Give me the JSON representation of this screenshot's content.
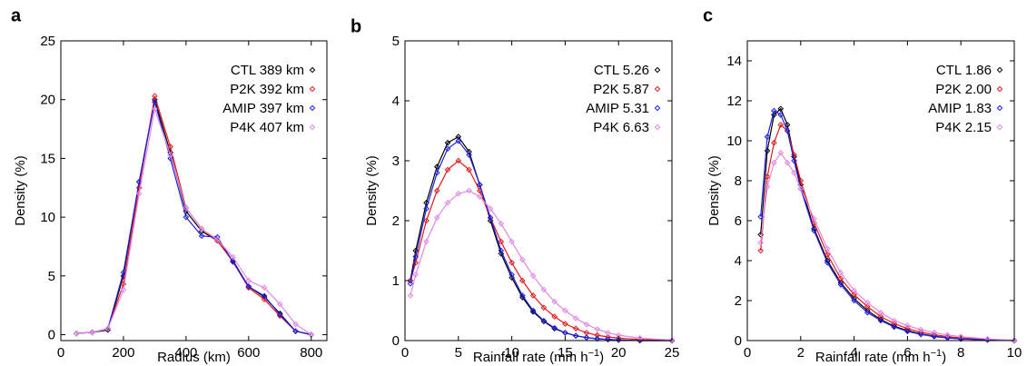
{
  "chart_data": [
    {
      "panel": "a",
      "type": "line",
      "xlabel": "Radius (km)",
      "ylabel": "Density (%)",
      "xlim": [
        0,
        850
      ],
      "ylim": [
        -0.5,
        25
      ],
      "xticks": [
        0,
        200,
        400,
        600,
        800
      ],
      "yticks": [
        0,
        5,
        10,
        15,
        20,
        25
      ],
      "grid": false,
      "legend_position": "top-right",
      "series": [
        {
          "name": "CTL",
          "legend": "CTL 389 km",
          "color": "#000000",
          "x": [
            50,
            100,
            150,
            200,
            250,
            300,
            350,
            400,
            450,
            500,
            550,
            600,
            650,
            700,
            750,
            800
          ],
          "y": [
            0.1,
            0.2,
            0.4,
            5.0,
            13.0,
            20.0,
            15.5,
            10.5,
            8.8,
            8.0,
            6.3,
            4.1,
            3.2,
            1.8,
            0.3,
            0.0
          ]
        },
        {
          "name": "P2K",
          "legend": "P2K 392 km",
          "color": "#e41a1c",
          "x": [
            50,
            100,
            150,
            200,
            250,
            300,
            350,
            400,
            450,
            500,
            550,
            600,
            650,
            700,
            750,
            800
          ],
          "y": [
            0.1,
            0.2,
            0.5,
            4.3,
            12.5,
            20.3,
            16.0,
            10.8,
            9.0,
            8.0,
            6.2,
            4.0,
            3.0,
            1.6,
            0.3,
            0.0
          ]
        },
        {
          "name": "AMIP",
          "legend": "AMIP 397 km",
          "color": "#1f1fe0",
          "x": [
            50,
            100,
            150,
            200,
            250,
            300,
            350,
            400,
            450,
            500,
            550,
            600,
            650,
            700,
            750,
            800
          ],
          "y": [
            0.1,
            0.2,
            0.5,
            5.3,
            13.0,
            19.8,
            15.0,
            10.0,
            8.4,
            8.3,
            6.2,
            4.1,
            3.3,
            1.7,
            0.3,
            0.0
          ]
        },
        {
          "name": "P4K",
          "legend": "P4K 407 km",
          "color": "#e089e6",
          "x": [
            50,
            100,
            150,
            200,
            250,
            300,
            350,
            400,
            450,
            500,
            550,
            600,
            650,
            700,
            750,
            800
          ],
          "y": [
            0.1,
            0.2,
            0.5,
            3.8,
            12.0,
            19.2,
            15.3,
            10.8,
            9.0,
            8.1,
            6.6,
            4.6,
            4.0,
            2.6,
            0.9,
            0.0
          ]
        }
      ]
    },
    {
      "panel": "b",
      "type": "line",
      "xlabel": "Rainfall rate (mm h",
      "xlabel_sup": "−1",
      "xlabel_end": ")",
      "ylabel": "Density (%)",
      "xlim": [
        0,
        25
      ],
      "ylim": [
        0,
        5
      ],
      "xticks": [
        0,
        5,
        10,
        15,
        20,
        25
      ],
      "yticks": [
        0,
        1,
        2,
        3,
        4,
        5
      ],
      "grid": false,
      "legend_position": "top-right",
      "series": [
        {
          "name": "CTL",
          "legend": "CTL 5.26",
          "color": "#000000",
          "x": [
            0.5,
            1,
            2,
            3,
            4,
            5,
            6,
            7,
            8,
            9,
            10,
            11,
            12,
            13,
            14,
            15,
            16,
            17,
            18,
            19,
            20,
            22,
            25
          ],
          "y": [
            1.0,
            1.5,
            2.3,
            2.9,
            3.3,
            3.4,
            3.15,
            2.6,
            2.0,
            1.45,
            1.05,
            0.72,
            0.48,
            0.32,
            0.2,
            0.13,
            0.08,
            0.05,
            0.03,
            0.02,
            0.01,
            0.0,
            0.0
          ]
        },
        {
          "name": "P2K",
          "legend": "P2K 5.87",
          "color": "#e41a1c",
          "x": [
            0.5,
            1,
            2,
            3,
            4,
            5,
            6,
            7,
            8,
            9,
            10,
            11,
            12,
            13,
            14,
            15,
            16,
            17,
            18,
            19,
            20,
            22,
            25
          ],
          "y": [
            1.0,
            1.3,
            2.0,
            2.5,
            2.85,
            3.0,
            2.85,
            2.5,
            2.05,
            1.65,
            1.3,
            1.0,
            0.75,
            0.55,
            0.4,
            0.28,
            0.2,
            0.13,
            0.09,
            0.06,
            0.04,
            0.02,
            0.0
          ]
        },
        {
          "name": "AMIP",
          "legend": "AMIP 5.31",
          "color": "#1f1fe0",
          "x": [
            0.5,
            1,
            2,
            3,
            4,
            5,
            6,
            7,
            8,
            9,
            10,
            11,
            12,
            13,
            14,
            15,
            16,
            17,
            18,
            19,
            20,
            22,
            25
          ],
          "y": [
            0.95,
            1.4,
            2.2,
            2.8,
            3.2,
            3.33,
            3.1,
            2.6,
            2.05,
            1.5,
            1.1,
            0.75,
            0.5,
            0.33,
            0.21,
            0.13,
            0.08,
            0.05,
            0.03,
            0.02,
            0.01,
            0.0,
            0.0
          ]
        },
        {
          "name": "P4K",
          "legend": "P4K 6.63",
          "color": "#e089e6",
          "x": [
            0.5,
            1,
            2,
            3,
            4,
            5,
            6,
            7,
            8,
            9,
            10,
            11,
            12,
            13,
            14,
            15,
            16,
            17,
            18,
            19,
            20,
            22,
            25
          ],
          "y": [
            0.75,
            1.1,
            1.65,
            2.05,
            2.3,
            2.45,
            2.5,
            2.4,
            2.2,
            1.95,
            1.65,
            1.35,
            1.08,
            0.85,
            0.65,
            0.5,
            0.37,
            0.27,
            0.19,
            0.13,
            0.09,
            0.04,
            0.01
          ]
        }
      ]
    },
    {
      "panel": "c",
      "type": "line",
      "xlabel": "Rainfall rate (mm h",
      "xlabel_sup": "−1",
      "xlabel_end": ")",
      "ylabel": "Density (%)",
      "xlim": [
        0,
        10
      ],
      "ylim": [
        0,
        15
      ],
      "xticks": [
        0,
        2,
        4,
        6,
        8,
        10
      ],
      "yticks": [
        0,
        2,
        4,
        6,
        8,
        10,
        12,
        14
      ],
      "grid": false,
      "legend_position": "top-right",
      "series": [
        {
          "name": "CTL",
          "legend": "CTL 1.86",
          "color": "#000000",
          "x": [
            0.5,
            0.75,
            1.0,
            1.25,
            1.5,
            1.75,
            2.0,
            2.5,
            3.0,
            3.5,
            4.0,
            4.5,
            5.0,
            5.5,
            6.0,
            6.5,
            7.0,
            7.5,
            8.0,
            9.0,
            10.0
          ],
          "y": [
            5.3,
            9.5,
            11.3,
            11.6,
            10.8,
            9.2,
            7.8,
            5.6,
            4.0,
            2.9,
            2.1,
            1.5,
            1.05,
            0.72,
            0.5,
            0.33,
            0.22,
            0.14,
            0.09,
            0.03,
            0.0
          ]
        },
        {
          "name": "P2K",
          "legend": "P2K 2.00",
          "color": "#e41a1c",
          "x": [
            0.5,
            0.75,
            1.0,
            1.25,
            1.5,
            1.75,
            2.0,
            2.5,
            3.0,
            3.5,
            4.0,
            4.5,
            5.0,
            5.5,
            6.0,
            6.5,
            7.0,
            7.5,
            8.0,
            9.0,
            10.0
          ],
          "y": [
            4.5,
            8.2,
            9.9,
            10.8,
            10.5,
            9.3,
            8.0,
            5.9,
            4.3,
            3.1,
            2.3,
            1.7,
            1.2,
            0.85,
            0.6,
            0.42,
            0.29,
            0.2,
            0.13,
            0.05,
            0.0
          ]
        },
        {
          "name": "AMIP",
          "legend": "AMIP 1.83",
          "color": "#1f1fe0",
          "x": [
            0.5,
            0.75,
            1.0,
            1.25,
            1.5,
            1.75,
            2.0,
            2.5,
            3.0,
            3.5,
            4.0,
            4.5,
            5.0,
            5.5,
            6.0,
            6.5,
            7.0,
            7.5,
            8.0,
            9.0,
            10.0
          ],
          "y": [
            6.2,
            10.2,
            11.5,
            11.3,
            10.5,
            9.0,
            7.6,
            5.5,
            3.9,
            2.8,
            2.0,
            1.4,
            1.0,
            0.68,
            0.46,
            0.31,
            0.2,
            0.13,
            0.08,
            0.03,
            0.0
          ]
        },
        {
          "name": "P4K",
          "legend": "P4K 2.15",
          "color": "#e089e6",
          "x": [
            0.5,
            0.75,
            1.0,
            1.25,
            1.5,
            1.75,
            2.0,
            2.5,
            3.0,
            3.5,
            4.0,
            4.5,
            5.0,
            5.5,
            6.0,
            6.5,
            7.0,
            7.5,
            8.0,
            9.0,
            10.0
          ],
          "y": [
            4.9,
            7.7,
            8.9,
            9.4,
            8.9,
            8.4,
            7.6,
            6.1,
            4.6,
            3.4,
            2.5,
            1.9,
            1.4,
            1.0,
            0.75,
            0.55,
            0.4,
            0.28,
            0.2,
            0.08,
            0.02
          ]
        }
      ]
    }
  ]
}
